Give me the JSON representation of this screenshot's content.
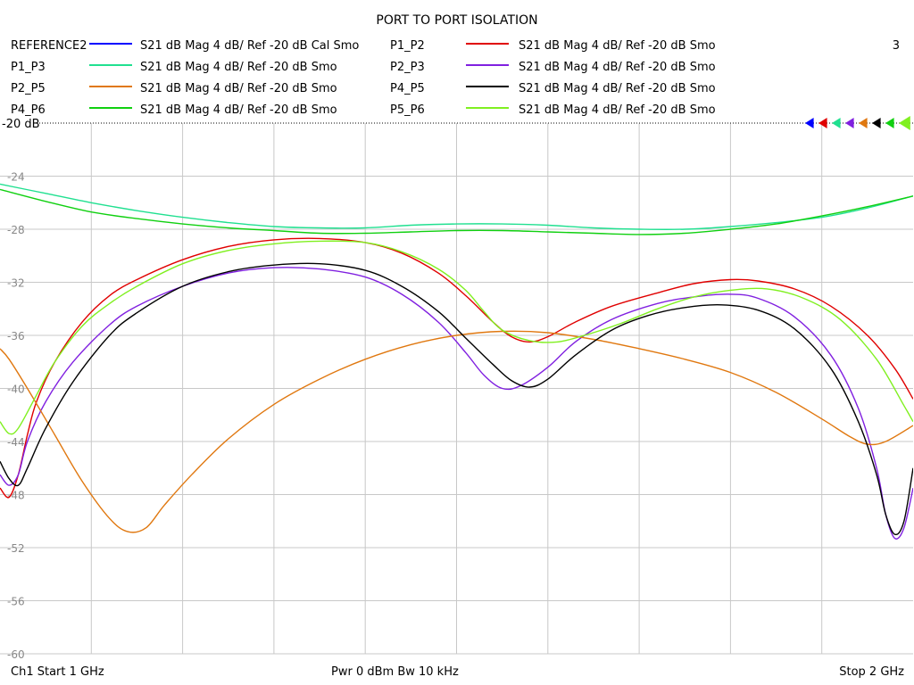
{
  "window": {
    "title": "PORT TO PORT ISOLATION",
    "window_number": "3"
  },
  "legend": [
    {
      "trace": "REFERENCE2",
      "description": "S21  dB Mag  4 dB/ Ref -20 dB  Cal Smo",
      "color": "#0000ff"
    },
    {
      "trace": "P1_P2",
      "description": "S21  dB Mag  4 dB/ Ref -20 dB  Smo",
      "color": "#e00000"
    },
    {
      "trace": "P1_P3",
      "description": "S21  dB Mag  4 dB/ Ref -20 dB  Smo",
      "color": "#20e090"
    },
    {
      "trace": "P2_P3",
      "description": "S21  dB Mag  4 dB/ Ref -20 dB  Smo",
      "color": "#8020e0"
    },
    {
      "trace": "P2_P5",
      "description": "S21  dB Mag  4 dB/ Ref -20 dB  Smo",
      "color": "#e07810"
    },
    {
      "trace": "P4_P5",
      "description": "S21  dB Mag  4 dB/ Ref -20 dB  Smo",
      "color": "#000000"
    },
    {
      "trace": "P4_P6",
      "description": "S21  dB Mag  4 dB/ Ref -20 dB  Smo",
      "color": "#10d010"
    },
    {
      "trace": "P5_P6",
      "description": "S21  dB Mag  4 dB/ Ref -20 dB  Smo",
      "color": "#80f020"
    }
  ],
  "footer": {
    "start": "Ch1  Start  1 GHz",
    "power": "Pwr  0 dBm  Bw  10 kHz",
    "stop": "Stop  2 GHz"
  },
  "chart_data": {
    "type": "line",
    "title": "PORT TO PORT ISOLATION",
    "xlabel": "",
    "ylabel": "",
    "xlim": [
      1.0,
      2.0
    ],
    "ylim": [
      -60,
      -20
    ],
    "x_divisions": 10,
    "grid": true,
    "ref_label": "-20 dB",
    "y_ticks": [
      {
        "value": -24,
        "label": "-24"
      },
      {
        "value": -28,
        "label": "-28"
      },
      {
        "value": -32,
        "label": "-32"
      },
      {
        "value": -36,
        "label": "-36"
      },
      {
        "value": -40,
        "label": "-40"
      },
      {
        "value": -44,
        "label": "-44"
      },
      {
        "value": -48,
        "label": "-48"
      },
      {
        "value": -52,
        "label": "-52"
      },
      {
        "value": -56,
        "label": "-56"
      },
      {
        "value": -60,
        "label": "-60"
      }
    ],
    "series": [
      {
        "name": "P1_P2",
        "color": "#e00000",
        "points": [
          [
            1.0,
            -47.5
          ],
          [
            1.01,
            -48.2
          ],
          [
            1.02,
            -46.5
          ],
          [
            1.03,
            -43.5
          ],
          [
            1.04,
            -41
          ],
          [
            1.06,
            -38
          ],
          [
            1.09,
            -35
          ],
          [
            1.12,
            -33
          ],
          [
            1.15,
            -31.8
          ],
          [
            1.2,
            -30.3
          ],
          [
            1.25,
            -29.3
          ],
          [
            1.3,
            -28.8
          ],
          [
            1.35,
            -28.7
          ],
          [
            1.4,
            -29
          ],
          [
            1.44,
            -29.8
          ],
          [
            1.48,
            -31.3
          ],
          [
            1.51,
            -33
          ],
          [
            1.54,
            -35
          ],
          [
            1.56,
            -36.1
          ],
          [
            1.58,
            -36.5
          ],
          [
            1.6,
            -36.1
          ],
          [
            1.63,
            -35
          ],
          [
            1.67,
            -33.8
          ],
          [
            1.72,
            -32.8
          ],
          [
            1.76,
            -32.1
          ],
          [
            1.8,
            -31.8
          ],
          [
            1.83,
            -31.9
          ],
          [
            1.87,
            -32.5
          ],
          [
            1.91,
            -33.8
          ],
          [
            1.95,
            -36
          ],
          [
            1.98,
            -38.5
          ],
          [
            2.0,
            -40.8
          ]
        ]
      },
      {
        "name": "P1_P3",
        "color": "#20e090",
        "points": [
          [
            1.0,
            -24.6
          ],
          [
            1.05,
            -25.3
          ],
          [
            1.1,
            -26
          ],
          [
            1.15,
            -26.6
          ],
          [
            1.2,
            -27.1
          ],
          [
            1.25,
            -27.5
          ],
          [
            1.3,
            -27.8
          ],
          [
            1.35,
            -27.9
          ],
          [
            1.4,
            -27.9
          ],
          [
            1.45,
            -27.7
          ],
          [
            1.5,
            -27.6
          ],
          [
            1.55,
            -27.6
          ],
          [
            1.6,
            -27.7
          ],
          [
            1.65,
            -27.9
          ],
          [
            1.7,
            -28
          ],
          [
            1.75,
            -28
          ],
          [
            1.8,
            -27.8
          ],
          [
            1.85,
            -27.5
          ],
          [
            1.9,
            -27.1
          ],
          [
            1.95,
            -26.4
          ],
          [
            2.0,
            -25.5
          ]
        ]
      },
      {
        "name": "P2_P3",
        "color": "#8020e0",
        "points": [
          [
            1.0,
            -46.5
          ],
          [
            1.01,
            -47.3
          ],
          [
            1.02,
            -46.5
          ],
          [
            1.03,
            -44
          ],
          [
            1.05,
            -41
          ],
          [
            1.08,
            -38
          ],
          [
            1.12,
            -35.2
          ],
          [
            1.15,
            -33.8
          ],
          [
            1.2,
            -32.3
          ],
          [
            1.25,
            -31.3
          ],
          [
            1.3,
            -30.9
          ],
          [
            1.35,
            -31
          ],
          [
            1.4,
            -31.6
          ],
          [
            1.44,
            -32.9
          ],
          [
            1.48,
            -35
          ],
          [
            1.51,
            -37.3
          ],
          [
            1.53,
            -39
          ],
          [
            1.55,
            -40
          ],
          [
            1.57,
            -39.8
          ],
          [
            1.6,
            -38.4
          ],
          [
            1.63,
            -36.5
          ],
          [
            1.67,
            -34.8
          ],
          [
            1.72,
            -33.6
          ],
          [
            1.76,
            -33.1
          ],
          [
            1.8,
            -32.9
          ],
          [
            1.83,
            -33.2
          ],
          [
            1.87,
            -34.6
          ],
          [
            1.91,
            -37.5
          ],
          [
            1.94,
            -41.5
          ],
          [
            1.96,
            -46
          ],
          [
            1.97,
            -49.5
          ],
          [
            1.98,
            -51.3
          ],
          [
            1.99,
            -50.5
          ],
          [
            2.0,
            -47.5
          ]
        ]
      },
      {
        "name": "P2_P5",
        "color": "#e07810",
        "points": [
          [
            1.0,
            -37
          ],
          [
            1.01,
            -37.8
          ],
          [
            1.03,
            -40
          ],
          [
            1.06,
            -43.5
          ],
          [
            1.09,
            -47
          ],
          [
            1.12,
            -49.8
          ],
          [
            1.14,
            -50.8
          ],
          [
            1.16,
            -50.5
          ],
          [
            1.18,
            -48.8
          ],
          [
            1.21,
            -46.5
          ],
          [
            1.25,
            -43.8
          ],
          [
            1.3,
            -41.2
          ],
          [
            1.35,
            -39.3
          ],
          [
            1.4,
            -37.8
          ],
          [
            1.45,
            -36.7
          ],
          [
            1.5,
            -36
          ],
          [
            1.55,
            -35.7
          ],
          [
            1.6,
            -35.8
          ],
          [
            1.65,
            -36.3
          ],
          [
            1.7,
            -37
          ],
          [
            1.75,
            -37.8
          ],
          [
            1.8,
            -38.8
          ],
          [
            1.85,
            -40.3
          ],
          [
            1.9,
            -42.3
          ],
          [
            1.93,
            -43.6
          ],
          [
            1.95,
            -44.2
          ],
          [
            1.97,
            -44
          ],
          [
            2.0,
            -42.8
          ]
        ]
      },
      {
        "name": "P4_P5",
        "color": "#000000",
        "points": [
          [
            1.0,
            -45.5
          ],
          [
            1.01,
            -46.8
          ],
          [
            1.02,
            -47.3
          ],
          [
            1.03,
            -46
          ],
          [
            1.05,
            -43
          ],
          [
            1.08,
            -39.5
          ],
          [
            1.12,
            -36
          ],
          [
            1.15,
            -34.3
          ],
          [
            1.2,
            -32.3
          ],
          [
            1.25,
            -31.2
          ],
          [
            1.3,
            -30.7
          ],
          [
            1.35,
            -30.6
          ],
          [
            1.4,
            -31.1
          ],
          [
            1.44,
            -32.3
          ],
          [
            1.48,
            -34.2
          ],
          [
            1.51,
            -36.2
          ],
          [
            1.54,
            -38.2
          ],
          [
            1.56,
            -39.4
          ],
          [
            1.58,
            -39.9
          ],
          [
            1.6,
            -39.3
          ],
          [
            1.63,
            -37.5
          ],
          [
            1.67,
            -35.6
          ],
          [
            1.71,
            -34.5
          ],
          [
            1.75,
            -33.9
          ],
          [
            1.79,
            -33.7
          ],
          [
            1.83,
            -34.1
          ],
          [
            1.87,
            -35.5
          ],
          [
            1.91,
            -38.5
          ],
          [
            1.94,
            -42.5
          ],
          [
            1.96,
            -46.5
          ],
          [
            1.97,
            -49.5
          ],
          [
            1.98,
            -51
          ],
          [
            1.99,
            -50
          ],
          [
            2.0,
            -46
          ]
        ]
      },
      {
        "name": "P4_P6",
        "color": "#10d010",
        "points": [
          [
            1.0,
            -25
          ],
          [
            1.05,
            -25.9
          ],
          [
            1.1,
            -26.7
          ],
          [
            1.15,
            -27.2
          ],
          [
            1.2,
            -27.6
          ],
          [
            1.25,
            -27.9
          ],
          [
            1.3,
            -28.1
          ],
          [
            1.35,
            -28.3
          ],
          [
            1.4,
            -28.3
          ],
          [
            1.45,
            -28.2
          ],
          [
            1.5,
            -28.1
          ],
          [
            1.55,
            -28.1
          ],
          [
            1.6,
            -28.2
          ],
          [
            1.65,
            -28.3
          ],
          [
            1.7,
            -28.4
          ],
          [
            1.75,
            -28.3
          ],
          [
            1.8,
            -28
          ],
          [
            1.85,
            -27.6
          ],
          [
            1.9,
            -27
          ],
          [
            1.95,
            -26.3
          ],
          [
            2.0,
            -25.5
          ]
        ]
      },
      {
        "name": "P5_P6",
        "color": "#80f020",
        "points": [
          [
            1.0,
            -42.5
          ],
          [
            1.01,
            -43.4
          ],
          [
            1.02,
            -43
          ],
          [
            1.04,
            -40.5
          ],
          [
            1.06,
            -38
          ],
          [
            1.09,
            -35.3
          ],
          [
            1.12,
            -33.6
          ],
          [
            1.15,
            -32.3
          ],
          [
            1.2,
            -30.6
          ],
          [
            1.25,
            -29.6
          ],
          [
            1.3,
            -29.1
          ],
          [
            1.35,
            -28.9
          ],
          [
            1.4,
            -29
          ],
          [
            1.44,
            -29.7
          ],
          [
            1.48,
            -31
          ],
          [
            1.51,
            -32.6
          ],
          [
            1.53,
            -34.2
          ],
          [
            1.55,
            -35.6
          ],
          [
            1.58,
            -36.4
          ],
          [
            1.61,
            -36.5
          ],
          [
            1.64,
            -36
          ],
          [
            1.68,
            -35.1
          ],
          [
            1.72,
            -34
          ],
          [
            1.76,
            -33.1
          ],
          [
            1.8,
            -32.6
          ],
          [
            1.84,
            -32.5
          ],
          [
            1.88,
            -33.2
          ],
          [
            1.92,
            -34.8
          ],
          [
            1.96,
            -37.8
          ],
          [
            1.99,
            -41.3
          ],
          [
            2.0,
            -42.5
          ]
        ]
      }
    ]
  }
}
